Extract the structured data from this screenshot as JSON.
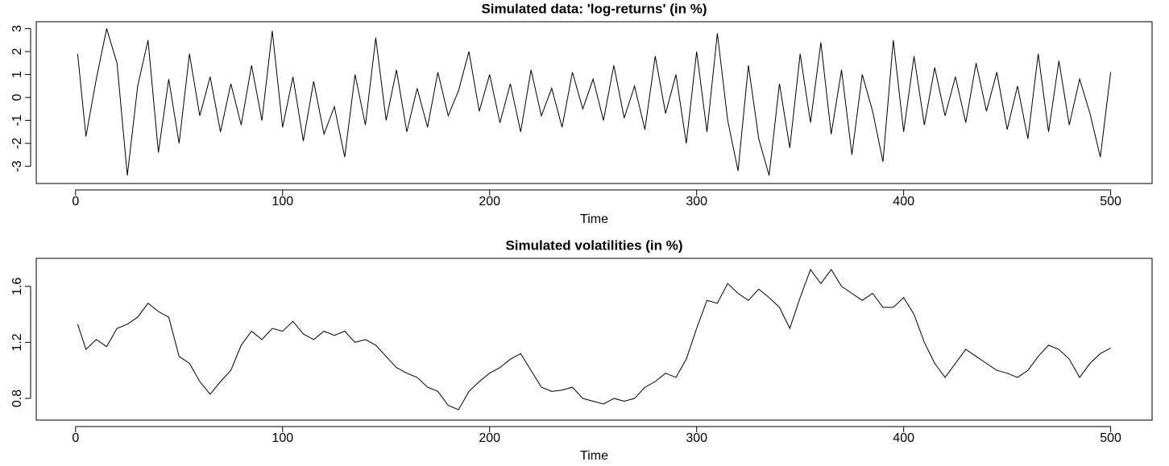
{
  "chart_data": [
    {
      "type": "line",
      "title": "Simulated data: 'log-returns' (in %)",
      "x_label": "Time",
      "x": [
        1,
        5,
        10,
        15,
        20,
        25,
        30,
        35,
        40,
        45,
        50,
        55,
        60,
        65,
        70,
        75,
        80,
        85,
        90,
        95,
        100,
        105,
        110,
        115,
        120,
        125,
        130,
        135,
        140,
        145,
        150,
        155,
        160,
        165,
        170,
        175,
        180,
        185,
        190,
        195,
        200,
        205,
        210,
        215,
        220,
        225,
        230,
        235,
        240,
        245,
        250,
        255,
        260,
        265,
        270,
        275,
        280,
        285,
        290,
        295,
        300,
        305,
        310,
        315,
        320,
        325,
        330,
        335,
        340,
        345,
        350,
        355,
        360,
        365,
        370,
        375,
        380,
        385,
        390,
        395,
        400,
        405,
        410,
        415,
        420,
        425,
        430,
        435,
        440,
        445,
        450,
        455,
        460,
        465,
        470,
        475,
        480,
        485,
        490,
        495,
        500
      ],
      "values": [
        1.9,
        -1.7,
        0.8,
        3.0,
        1.5,
        -3.4,
        0.5,
        2.5,
        -2.4,
        0.8,
        -2.0,
        1.9,
        -0.8,
        0.9,
        -1.5,
        0.6,
        -1.2,
        1.4,
        -1.0,
        2.9,
        -1.3,
        0.9,
        -1.9,
        0.7,
        -1.6,
        -0.4,
        -2.6,
        1.0,
        -1.2,
        2.6,
        -1.0,
        1.2,
        -1.5,
        0.4,
        -1.3,
        1.1,
        -0.8,
        0.3,
        2.0,
        -0.6,
        1.0,
        -1.1,
        0.6,
        -1.5,
        1.2,
        -0.8,
        0.4,
        -1.3,
        1.1,
        -0.5,
        0.8,
        -1.0,
        1.4,
        -0.9,
        0.5,
        -1.4,
        1.8,
        -0.7,
        1.0,
        -2.0,
        2.0,
        -1.5,
        2.8,
        -1.0,
        -3.2,
        1.4,
        -1.8,
        -3.4,
        0.6,
        -2.2,
        1.9,
        -1.1,
        2.4,
        -1.6,
        1.2,
        -2.5,
        1.0,
        -0.6,
        -2.8,
        2.5,
        -1.5,
        1.8,
        -1.2,
        1.3,
        -0.8,
        0.9,
        -1.1,
        1.5,
        -0.6,
        1.1,
        -1.4,
        0.5,
        -1.8,
        1.9,
        -1.5,
        1.6,
        -1.2,
        0.8,
        -0.7,
        -2.6,
        1.1
      ],
      "color": "#000000",
      "xlim": [
        -19,
        520
      ],
      "xticks": [
        0,
        100,
        200,
        300,
        400,
        500
      ],
      "ylim": [
        -3.75,
        3.3
      ],
      "yticks": [
        -3,
        -2,
        -1,
        0,
        1,
        2,
        3
      ]
    },
    {
      "type": "line",
      "title": "Simulated volatilities (in %)",
      "x_label": "Time",
      "x": [
        1,
        5,
        10,
        15,
        20,
        25,
        30,
        35,
        40,
        45,
        50,
        55,
        60,
        65,
        70,
        75,
        80,
        85,
        90,
        95,
        100,
        105,
        110,
        115,
        120,
        125,
        130,
        135,
        140,
        145,
        150,
        155,
        160,
        165,
        170,
        175,
        180,
        185,
        190,
        195,
        200,
        205,
        210,
        215,
        220,
        225,
        230,
        235,
        240,
        245,
        250,
        255,
        260,
        265,
        270,
        275,
        280,
        285,
        290,
        295,
        300,
        305,
        310,
        315,
        320,
        325,
        330,
        335,
        340,
        345,
        350,
        355,
        360,
        365,
        370,
        375,
        380,
        385,
        390,
        395,
        400,
        405,
        410,
        415,
        420,
        425,
        430,
        435,
        440,
        445,
        450,
        455,
        460,
        465,
        470,
        475,
        480,
        485,
        490,
        495,
        500
      ],
      "values": [
        1.33,
        1.15,
        1.22,
        1.17,
        1.3,
        1.33,
        1.38,
        1.48,
        1.42,
        1.38,
        1.1,
        1.05,
        0.92,
        0.83,
        0.92,
        1.0,
        1.18,
        1.28,
        1.22,
        1.3,
        1.28,
        1.35,
        1.26,
        1.22,
        1.28,
        1.25,
        1.28,
        1.2,
        1.22,
        1.18,
        1.1,
        1.02,
        0.98,
        0.95,
        0.88,
        0.85,
        0.75,
        0.72,
        0.85,
        0.92,
        0.98,
        1.02,
        1.08,
        1.12,
        1.0,
        0.88,
        0.85,
        0.86,
        0.88,
        0.8,
        0.78,
        0.76,
        0.8,
        0.78,
        0.8,
        0.88,
        0.92,
        0.98,
        0.95,
        1.08,
        1.3,
        1.5,
        1.48,
        1.62,
        1.55,
        1.5,
        1.58,
        1.52,
        1.45,
        1.3,
        1.52,
        1.72,
        1.62,
        1.72,
        1.6,
        1.55,
        1.5,
        1.55,
        1.45,
        1.45,
        1.52,
        1.4,
        1.2,
        1.05,
        0.95,
        1.05,
        1.15,
        1.1,
        1.05,
        1.0,
        0.98,
        0.95,
        1.0,
        1.1,
        1.18,
        1.15,
        1.08,
        0.95,
        1.05,
        1.12,
        1.16
      ],
      "color": "#000000",
      "xlim": [
        -19,
        520
      ],
      "xticks": [
        0,
        100,
        200,
        300,
        400,
        500
      ],
      "ylim": [
        0.645,
        1.8
      ],
      "yticks": [
        0.8,
        1.2,
        1.6
      ]
    }
  ]
}
